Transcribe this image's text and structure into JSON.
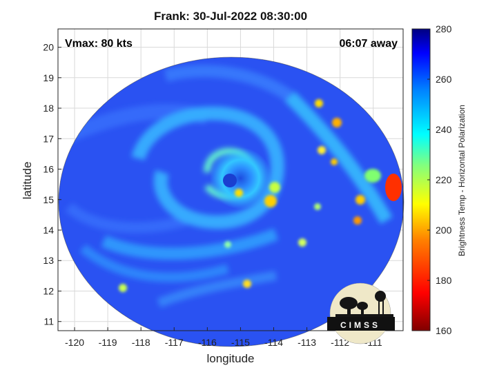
{
  "chart_data": {
    "type": "heatmap",
    "title": "Frank: 30-Jul-2022 08:30:00",
    "xlabel": "longitude",
    "ylabel": "latitude",
    "x_ticks": [
      -120,
      -119,
      -118,
      -117,
      -116,
      -115,
      -114,
      -113,
      -112,
      -111
    ],
    "y_ticks": [
      11,
      12,
      13,
      14,
      15,
      16,
      17,
      18,
      19,
      20
    ],
    "xlim": [
      -120.5,
      -110.1
    ],
    "ylim": [
      10.7,
      20.6
    ],
    "grid": true,
    "annotations": {
      "vmax": "Vmax: 80 kts",
      "time_away": "06:07 away"
    },
    "storm_center": {
      "lon": -115.0,
      "lat": 15.7
    },
    "colorbar": {
      "label": "Brightness Temp - Horizontal Polarization",
      "ticks": [
        160,
        180,
        200,
        220,
        240,
        260,
        280
      ],
      "range": [
        160,
        280
      ],
      "colormap": [
        "#800000",
        "#ff0000",
        "#ff8000",
        "#ffff00",
        "#80ff80",
        "#00ffff",
        "#0080ff",
        "#0000ff",
        "#000080"
      ]
    },
    "logo_text": "CIMSS"
  }
}
